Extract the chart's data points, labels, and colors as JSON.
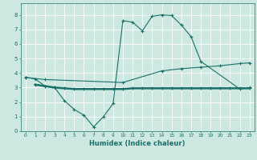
{
  "title": "",
  "xlabel": "Humidex (Indice chaleur)",
  "bg_color": "#cce8e0",
  "grid_color": "#ffffff",
  "line_color": "#1a7068",
  "xlim": [
    -0.5,
    23.5
  ],
  "ylim": [
    0,
    8.8
  ],
  "xticks": [
    0,
    1,
    2,
    3,
    4,
    5,
    6,
    7,
    8,
    9,
    10,
    11,
    12,
    13,
    14,
    15,
    16,
    17,
    18,
    19,
    20,
    21,
    22,
    23
  ],
  "yticks": [
    0,
    1,
    2,
    3,
    4,
    5,
    6,
    7,
    8
  ],
  "line1_x": [
    0,
    1,
    2,
    3,
    4,
    5,
    6,
    7,
    8,
    9,
    10,
    11,
    12,
    13,
    14,
    15,
    16,
    17,
    18,
    22,
    23
  ],
  "line1_y": [
    3.7,
    3.6,
    3.1,
    3.0,
    2.1,
    1.5,
    1.1,
    0.3,
    1.0,
    1.9,
    7.6,
    7.5,
    6.9,
    7.9,
    8.0,
    7.95,
    7.3,
    6.5,
    4.8,
    2.9,
    3.0
  ],
  "line2_x": [
    0,
    2,
    10,
    14,
    16,
    18,
    20,
    22,
    23
  ],
  "line2_y": [
    3.7,
    3.55,
    3.35,
    4.15,
    4.3,
    4.4,
    4.5,
    4.65,
    4.7
  ],
  "line3_x": [
    1,
    2,
    3,
    4,
    5,
    6,
    7,
    8,
    9,
    10,
    11,
    12,
    13,
    14,
    15,
    16,
    17,
    18,
    19,
    20,
    21,
    22,
    23
  ],
  "line3_y": [
    3.2,
    3.1,
    3.0,
    2.95,
    2.9,
    2.9,
    2.9,
    2.9,
    2.9,
    2.9,
    2.95,
    2.95,
    2.95,
    2.95,
    2.95,
    2.95,
    2.95,
    2.95,
    2.95,
    2.95,
    2.95,
    2.95,
    2.95
  ]
}
